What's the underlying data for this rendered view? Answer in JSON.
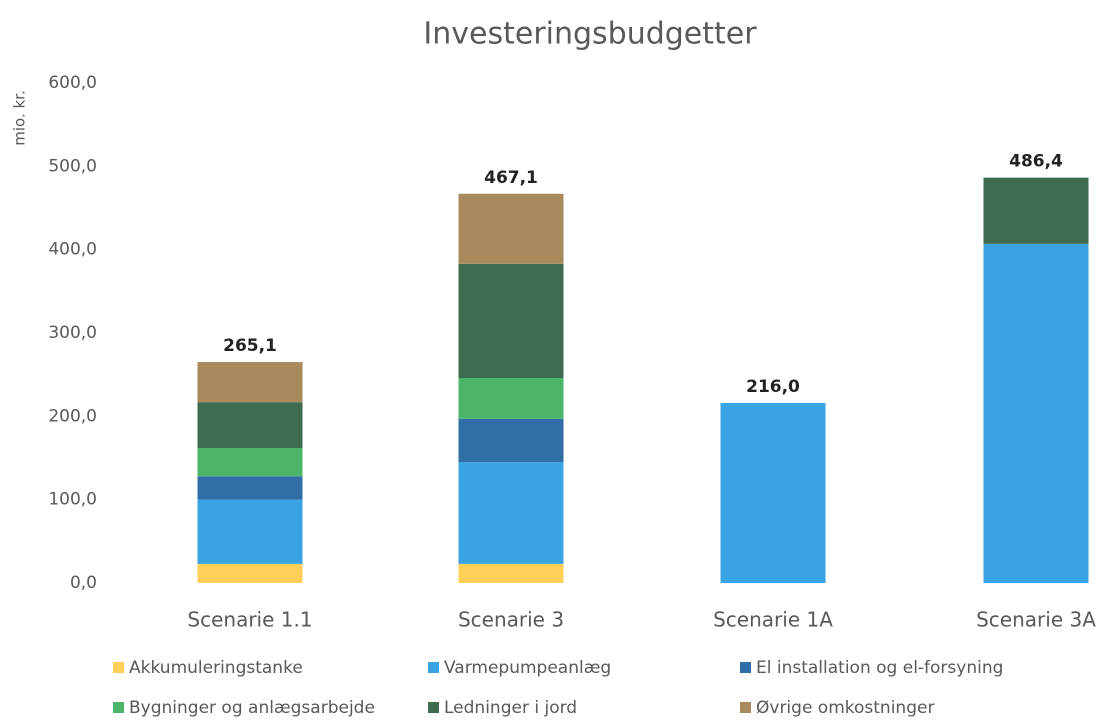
{
  "chart_data": {
    "type": "stacked_bar",
    "title": "Investeringsbudgetter",
    "y_label": "mio. kr.",
    "categories": [
      "Scenarie 1.1",
      "Scenarie 3",
      "Scenarie 1A",
      "Scenarie 3A"
    ],
    "series": [
      {
        "name": "Akkumuleringstanke",
        "color": "#ffcf57",
        "values": [
          23,
          23,
          0,
          0
        ]
      },
      {
        "name": "Varmepumpeanlæg",
        "color": "#3aa3e3",
        "values": [
          77,
          122,
          216.0,
          407
        ]
      },
      {
        "name": "El installation og el-forsyning",
        "color": "#2f6ea6",
        "values": [
          28,
          52,
          0,
          0
        ]
      },
      {
        "name": "Bygninger og anlægsarbejde",
        "color": "#4db56a",
        "values": [
          34,
          49,
          0,
          0
        ]
      },
      {
        "name": "Ledninger i jord",
        "color": "#3e6a50",
        "values": [
          55,
          137,
          0,
          79.4
        ]
      },
      {
        "name": "Øvrige omkostninger",
        "color": "#a98a5c",
        "values": [
          48.1,
          84.1,
          0,
          0
        ]
      }
    ],
    "totals": [
      265.1,
      467.1,
      216.0,
      486.4
    ],
    "total_labels": [
      "265,1",
      "467,1",
      "216,0",
      "486,4"
    ],
    "ylim": [
      0,
      600
    ],
    "yticks": [
      {
        "value": 0,
        "label": "0,0"
      },
      {
        "value": 100,
        "label": "100,0"
      },
      {
        "value": 200,
        "label": "200,0"
      },
      {
        "value": 300,
        "label": "300,0"
      },
      {
        "value": 400,
        "label": "400,0"
      },
      {
        "value": 500,
        "label": "500,0"
      },
      {
        "value": 600,
        "label": "600,0"
      }
    ],
    "grid": false
  }
}
